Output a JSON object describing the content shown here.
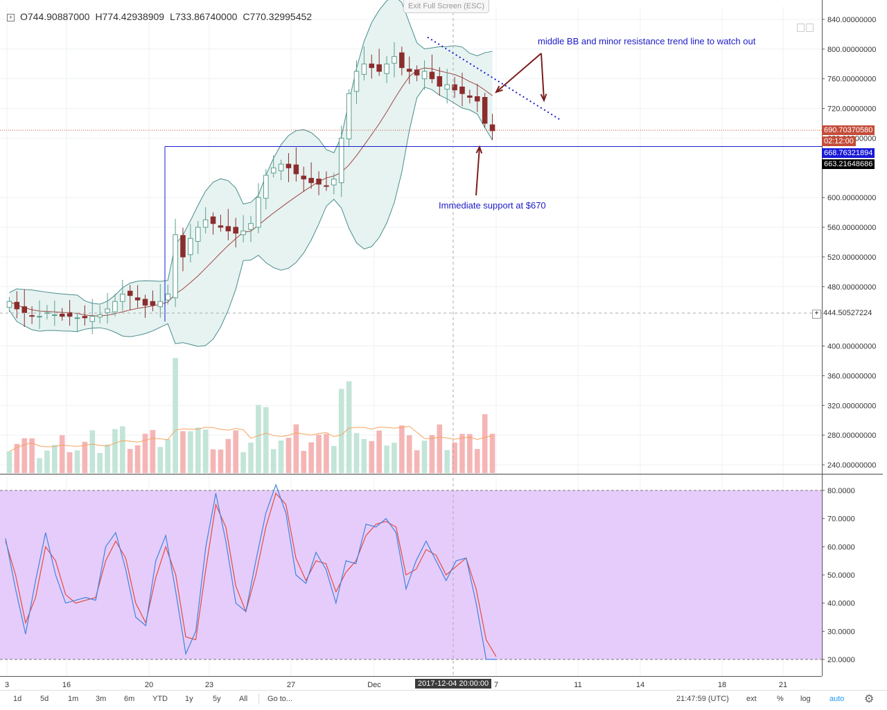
{
  "toolbar": {
    "ohlc": {
      "o": "O744.90887000",
      "h": "H774.42938909",
      "l": "L733.86740000",
      "c": "C770.32995452"
    },
    "exit_fullscreen": "Exit Full Screen (ESC)"
  },
  "annotations": {
    "resistance": "middle BB and minor resistance trend line to watch out",
    "support": "Immediate support at $670"
  },
  "price_tags": {
    "last": "690.70370580",
    "countdown": "02:12:00",
    "blue": "668.76321894",
    "black": "663.21648686",
    "crosshair": "444.50527224"
  },
  "crosshair_date": "2017-12-04 20:00:00",
  "colors": {
    "up": "#5b9e8b",
    "down": "#8b2d2d",
    "bb_fill": "#e6f3f1",
    "bb_line": "#4a8c8c",
    "basis": "#a04545",
    "vol_up": "#c2e5d8",
    "vol_down": "#f5b5b5",
    "vol_ma": "#f5a35c",
    "stoch_bg": "#e6ccfa",
    "stoch_k": "#3d85e0",
    "stoch_d": "#e64a3c",
    "annot": "#1a1ac8",
    "arrow": "#7a1e1e"
  },
  "bottom_bar": {
    "timeframes": [
      "1d",
      "5d",
      "1m",
      "3m",
      "6m",
      "YTD",
      "1y",
      "5y",
      "All"
    ],
    "goto": "Go to...",
    "clock": "21:47:59 (UTC)",
    "ext": "ext",
    "percent": "%",
    "log": "log",
    "auto": "auto"
  },
  "chart_data": [
    {
      "type": "candlestick",
      "title": "",
      "symbol": "",
      "y_axis_labels": [
        "840.00000000",
        "800.00000000",
        "760.00000000",
        "720.00000000",
        "680.00000000",
        "600.00000000",
        "560.00000000",
        "520.00000000",
        "480.00000000",
        "400.00000000",
        "360.00000000",
        "320.00000000",
        "280.00000000",
        "240.00000000"
      ],
      "x_axis_labels": [
        "3",
        "16",
        "20",
        "23",
        "27",
        "Dec",
        "7",
        "11",
        "14",
        "18",
        "21"
      ],
      "ylim": [
        232,
        850
      ],
      "overlays": [
        "Bollinger Bands",
        "Volume",
        "Volume MA"
      ],
      "horizontal_lines": [
        668.76321894,
        663.21648686,
        690.7037058
      ],
      "close_series": [
        460,
        450,
        445,
        440,
        440,
        445,
        442,
        440,
        440,
        438,
        438,
        440,
        442,
        450,
        460,
        470,
        468,
        462,
        455,
        455,
        460,
        470,
        550,
        520,
        545,
        560,
        570,
        565,
        560,
        555,
        552,
        555,
        565,
        600,
        630,
        640,
        645,
        640,
        632,
        625,
        620,
        618,
        615,
        625,
        680,
        740,
        770,
        780,
        775,
        770,
        780,
        790,
        775,
        770,
        765,
        770,
        760,
        750,
        752,
        745,
        740,
        735,
        730,
        700,
        690
      ]
    },
    {
      "type": "line",
      "title": "",
      "name": "Stochastic",
      "y_axis_labels": [
        "80.0000",
        "70.0000",
        "60.0000",
        "50.0000",
        "40.0000",
        "30.0000",
        "20.0000"
      ],
      "ylim": [
        17,
        83
      ],
      "bands": [
        80,
        20
      ],
      "k_series": [
        63,
        45,
        29,
        48,
        65,
        50,
        40,
        41,
        42,
        41,
        60,
        65,
        52,
        35,
        32,
        55,
        64,
        44,
        22,
        30,
        60,
        79,
        62,
        40,
        37,
        55,
        72,
        82,
        72,
        50,
        47,
        58,
        52,
        40,
        55,
        54,
        68,
        67,
        70,
        65,
        45,
        55,
        62,
        55,
        48,
        55,
        56,
        40,
        20,
        20
      ],
      "d_series": [
        62,
        50,
        33,
        42,
        60,
        55,
        43,
        40,
        41,
        42,
        55,
        62,
        56,
        40,
        33,
        49,
        60,
        50,
        28,
        27,
        52,
        75,
        67,
        46,
        37,
        50,
        67,
        79,
        75,
        56,
        48,
        55,
        54,
        44,
        51,
        55,
        64,
        68,
        69,
        67,
        50,
        52,
        59,
        57,
        50,
        53,
        56,
        45,
        27,
        21
      ]
    }
  ]
}
